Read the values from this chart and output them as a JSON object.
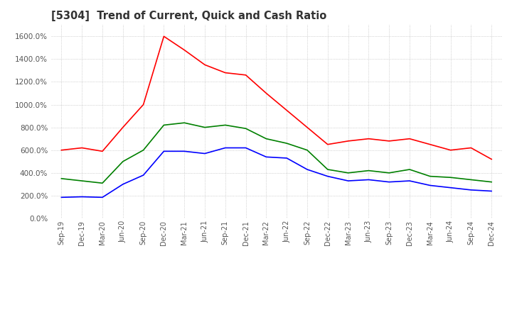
{
  "title": "[5304]  Trend of Current, Quick and Cash Ratio",
  "x_labels": [
    "Sep-19",
    "Dec-19",
    "Mar-20",
    "Jun-20",
    "Sep-20",
    "Dec-20",
    "Mar-21",
    "Jun-21",
    "Sep-21",
    "Dec-21",
    "Mar-22",
    "Jun-22",
    "Sep-22",
    "Dec-22",
    "Mar-23",
    "Jun-23",
    "Sep-23",
    "Dec-23",
    "Mar-24",
    "Jun-24",
    "Sep-24",
    "Dec-24"
  ],
  "current_ratio": [
    600,
    620,
    590,
    800,
    1000,
    1600,
    1480,
    1350,
    1280,
    1260,
    1100,
    950,
    800,
    650,
    680,
    700,
    680,
    700,
    650,
    600,
    620,
    520
  ],
  "quick_ratio": [
    350,
    330,
    310,
    500,
    600,
    820,
    840,
    800,
    820,
    790,
    700,
    660,
    600,
    430,
    400,
    420,
    400,
    430,
    370,
    360,
    340,
    320
  ],
  "cash_ratio": [
    185,
    190,
    185,
    300,
    380,
    590,
    590,
    570,
    620,
    620,
    540,
    530,
    430,
    370,
    330,
    340,
    320,
    330,
    290,
    270,
    250,
    240
  ],
  "ylim": [
    0,
    1700
  ],
  "yticks": [
    0,
    200,
    400,
    600,
    800,
    1000,
    1200,
    1400,
    1600
  ],
  "current_color": "#ff0000",
  "quick_color": "#008000",
  "cash_color": "#0000ff",
  "background_color": "#ffffff",
  "grid_color": "#aaaaaa"
}
